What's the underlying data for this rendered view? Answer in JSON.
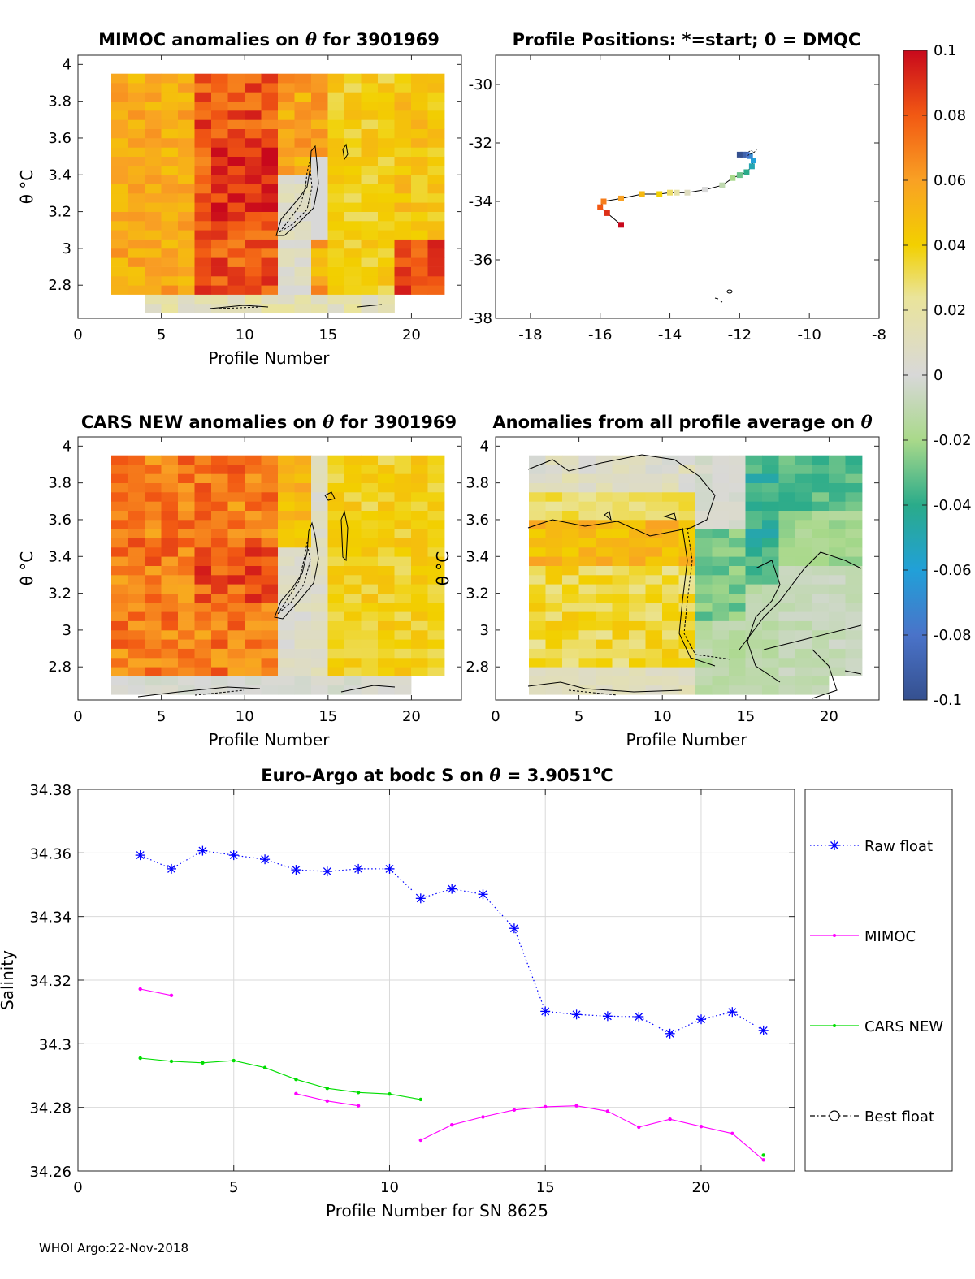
{
  "charts": {
    "mimoc": {
      "title_a": "MIMOC anomalies on ",
      "title_b": " for 3901969",
      "xlabel": "Profile Number",
      "ylabel": "θ °C",
      "xticks": [
        "0",
        "5",
        "10",
        "15",
        "20"
      ],
      "yticks": [
        "4",
        "3.8",
        "3.6",
        "3.4",
        "3.2",
        "3",
        "2.8"
      ]
    },
    "positions": {
      "title": "Profile Positions: *=start; 0 = DMQC",
      "xticks": [
        "-18",
        "-16",
        "-14",
        "-12",
        "-10",
        "-8"
      ],
      "yticks": [
        "-30",
        "-32",
        "-34",
        "-36",
        "-38"
      ]
    },
    "cars": {
      "title_a": "CARS NEW anomalies on ",
      "title_b": " for 3901969",
      "xlabel": "Profile Number",
      "ylabel": "θ °C",
      "xticks": [
        "0",
        "5",
        "10",
        "15",
        "20"
      ],
      "yticks": [
        "4",
        "3.8",
        "3.6",
        "3.4",
        "3.2",
        "3",
        "2.8"
      ]
    },
    "avg": {
      "title": "Anomalies from all profile average on ",
      "xlabel": "Profile Number",
      "ylabel": "θ °C",
      "xticks": [
        "0",
        "5",
        "10",
        "15",
        "20"
      ],
      "yticks": [
        "4",
        "3.8",
        "3.6",
        "3.4",
        "3.2",
        "3",
        "2.8"
      ]
    },
    "colorbar": {
      "ticks": [
        "0.1",
        "0.08",
        "0.06",
        "0.04",
        "0.02",
        "0",
        "-0.02",
        "-0.04",
        "-0.06",
        "-0.08",
        "-0.1"
      ]
    },
    "salinity": {
      "title_a": "Euro-Argo at bodc S on ",
      "title_b": " = 3.9051",
      "title_c": "o",
      "title_d": "C",
      "xlabel": "Profile Number for SN 8625",
      "ylabel": "Salinity",
      "xticks": [
        "0",
        "5",
        "10",
        "15",
        "20"
      ],
      "yticks": [
        "34.38",
        "34.36",
        "34.34",
        "34.32",
        "34.3",
        "34.28",
        "34.26"
      ],
      "legend": [
        "Raw float",
        "MIMOC",
        "CARS NEW",
        "Best float"
      ]
    }
  },
  "footer": "WHOI Argo:22-Nov-2018",
  "colors": {
    "raw": "#0000ff",
    "mimoc": "#ff00ff",
    "cars": "#00dd00",
    "best": "#000000",
    "grid": "#d9d9d9"
  },
  "chart_data": [
    {
      "type": "line",
      "title": "Euro-Argo at bodc S on θ = 3.9051°C",
      "xlabel": "Profile Number for SN 8625",
      "ylabel": "Salinity",
      "xlim": [
        0,
        23
      ],
      "ylim": [
        34.26,
        34.38
      ],
      "grid": true,
      "legend_position": "right",
      "series": [
        {
          "name": "Raw float",
          "x": [
            2,
            3,
            4,
            5,
            6,
            7,
            8,
            9,
            10,
            11,
            12,
            13,
            14,
            15,
            16,
            17,
            18,
            19,
            20,
            21,
            22
          ],
          "values": [
            34.3593,
            34.355,
            34.3607,
            34.3593,
            34.358,
            34.3547,
            34.3542,
            34.355,
            34.355,
            34.3457,
            34.3487,
            34.347,
            34.3363,
            34.3102,
            34.3092,
            34.3087,
            34.3085,
            34.3032,
            34.3077,
            34.31,
            34.3042
          ]
        },
        {
          "name": "MIMOC",
          "x": [
            2,
            3,
            null,
            7,
            8,
            9,
            null,
            11,
            12,
            13,
            14,
            15,
            16,
            17,
            18,
            19,
            20,
            21,
            22
          ],
          "values": [
            34.3172,
            34.3152,
            null,
            34.2843,
            34.282,
            34.2805,
            null,
            34.2697,
            34.2745,
            34.277,
            34.2792,
            34.2802,
            34.2805,
            34.2788,
            34.2738,
            34.2763,
            34.274,
            34.2718,
            34.2635
          ]
        },
        {
          "name": "CARS NEW",
          "x": [
            2,
            3,
            4,
            5,
            6,
            7,
            8,
            9,
            10,
            11,
            null,
            22
          ],
          "values": [
            34.2955,
            34.2945,
            34.294,
            34.2947,
            34.2925,
            34.2888,
            34.286,
            34.2847,
            34.2842,
            34.2825,
            null,
            34.265
          ]
        },
        {
          "name": "Best float",
          "x": [],
          "values": []
        }
      ]
    },
    {
      "type": "line",
      "title": "Profile Positions: *=start; 0 = DMQC",
      "xlim": [
        -19,
        -8
      ],
      "ylim": [
        -38,
        -29
      ],
      "x": [
        -15.4,
        -15.8,
        -16.0,
        -15.9,
        -15.4,
        -14.8,
        -14.3,
        -14.0,
        -13.8,
        -13.5,
        -13.0,
        -12.5,
        -12.2,
        -12.0,
        -11.8,
        -11.65,
        -11.6,
        -11.7,
        -11.8,
        -11.9,
        -12.0
      ],
      "y": [
        -34.8,
        -34.4,
        -34.2,
        -34.0,
        -33.9,
        -33.75,
        -33.75,
        -33.7,
        -33.7,
        -33.7,
        -33.6,
        -33.45,
        -33.2,
        -33.1,
        -33.0,
        -32.8,
        -32.6,
        -32.45,
        -32.4,
        -32.4,
        -32.4
      ]
    },
    {
      "type": "heatmap",
      "title": "MIMOC anomalies on θ for 3901969",
      "xlabel": "Profile Number",
      "ylabel": "θ °C",
      "xlim": [
        0,
        23
      ],
      "ylim": [
        2.62,
        4.05
      ],
      "clim": [
        -0.1,
        0.1
      ]
    },
    {
      "type": "heatmap",
      "title": "CARS NEW anomalies on θ for 3901969",
      "xlabel": "Profile Number",
      "ylabel": "θ °C",
      "xlim": [
        0,
        23
      ],
      "ylim": [
        2.62,
        4.05
      ],
      "clim": [
        -0.1,
        0.1
      ]
    },
    {
      "type": "heatmap",
      "title": "Anomalies from all profile average on θ",
      "xlabel": "Profile Number",
      "ylabel": "θ °C",
      "xlim": [
        0,
        23
      ],
      "ylim": [
        2.62,
        4.05
      ],
      "clim": [
        -0.1,
        0.1
      ]
    }
  ]
}
